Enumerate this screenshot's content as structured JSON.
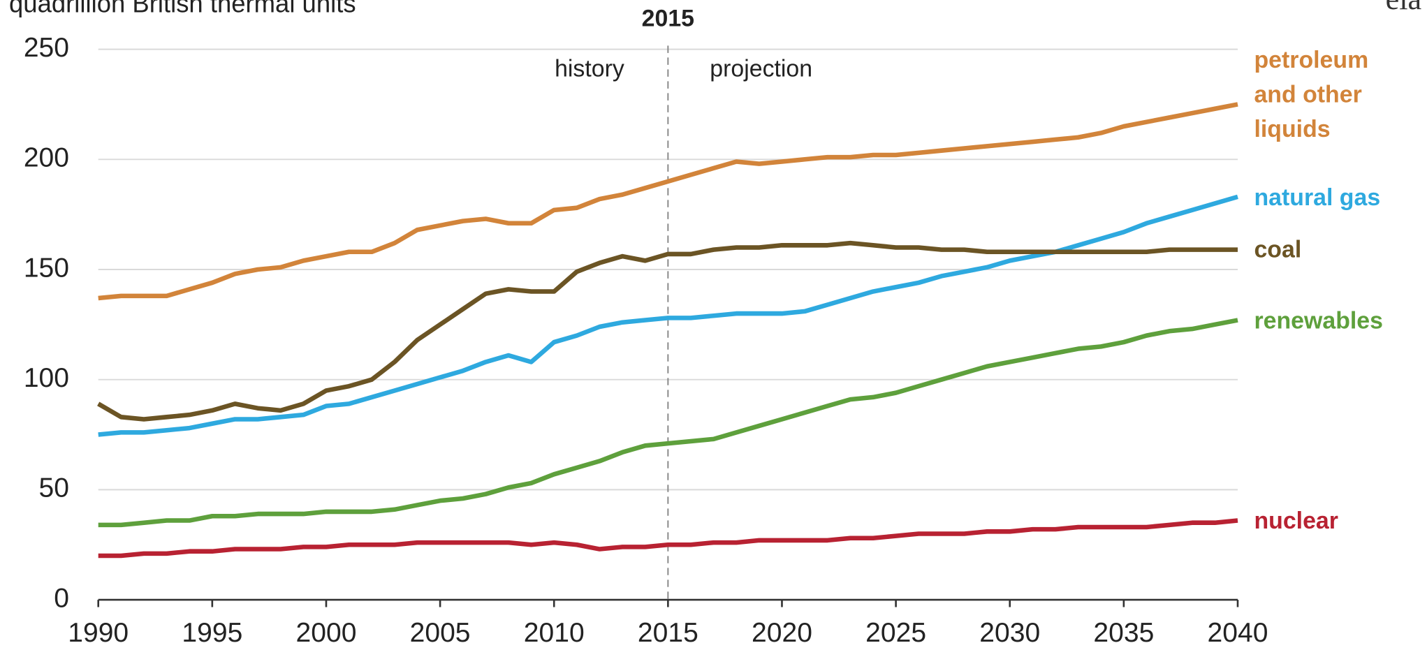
{
  "chart_data": {
    "type": "line",
    "y_axis_label": "quadrillion British thermal units",
    "logo": "eia",
    "divider": 2015,
    "left_note": "history",
    "right_note": "projection",
    "xlim": [
      1990,
      2040
    ],
    "xticks": [
      1990,
      1995,
      2000,
      2005,
      2010,
      2015,
      2020,
      2025,
      2030,
      2035,
      2040
    ],
    "ylim": [
      0,
      250
    ],
    "yticks": [
      0,
      50,
      100,
      150,
      200,
      250
    ],
    "grid": true,
    "x": [
      1990,
      1991,
      1992,
      1993,
      1994,
      1995,
      1996,
      1997,
      1998,
      1999,
      2000,
      2001,
      2002,
      2003,
      2004,
      2005,
      2006,
      2007,
      2008,
      2009,
      2010,
      2011,
      2012,
      2013,
      2014,
      2015,
      2016,
      2017,
      2018,
      2019,
      2020,
      2021,
      2022,
      2023,
      2024,
      2025,
      2026,
      2027,
      2028,
      2029,
      2030,
      2031,
      2032,
      2033,
      2034,
      2035,
      2036,
      2037,
      2038,
      2039,
      2040
    ],
    "series": [
      {
        "name": "petroleum and other liquids",
        "color": "#d2843a",
        "values": [
          137,
          138,
          138,
          138,
          141,
          144,
          148,
          150,
          151,
          154,
          156,
          158,
          158,
          162,
          168,
          170,
          172,
          173,
          171,
          171,
          177,
          178,
          182,
          184,
          187,
          190,
          193,
          196,
          199,
          198,
          199,
          200,
          201,
          201,
          202,
          202,
          203,
          204,
          205,
          206,
          207,
          208,
          209,
          210,
          212,
          215,
          217,
          219,
          221,
          223,
          225
        ]
      },
      {
        "name": "natural gas",
        "color": "#2ea9df",
        "values": [
          75,
          76,
          76,
          77,
          78,
          80,
          82,
          82,
          83,
          84,
          88,
          89,
          92,
          95,
          98,
          101,
          104,
          108,
          111,
          108,
          117,
          120,
          124,
          126,
          127,
          128,
          128,
          129,
          130,
          130,
          130,
          131,
          134,
          137,
          140,
          142,
          144,
          147,
          149,
          151,
          154,
          156,
          158,
          161,
          164,
          167,
          171,
          174,
          177,
          180,
          183
        ]
      },
      {
        "name": "coal",
        "color": "#6b5424",
        "values": [
          89,
          83,
          82,
          83,
          84,
          86,
          89,
          87,
          86,
          89,
          95,
          97,
          100,
          108,
          118,
          125,
          132,
          139,
          141,
          140,
          140,
          149,
          153,
          156,
          154,
          157,
          157,
          159,
          160,
          160,
          161,
          161,
          161,
          162,
          161,
          160,
          160,
          159,
          159,
          158,
          158,
          158,
          158,
          158,
          158,
          158,
          158,
          159,
          159,
          159,
          159
        ]
      },
      {
        "name": "renewables",
        "color": "#5ea03c",
        "values": [
          34,
          34,
          35,
          36,
          36,
          38,
          38,
          39,
          39,
          39,
          40,
          40,
          40,
          41,
          43,
          45,
          46,
          48,
          51,
          53,
          57,
          60,
          63,
          67,
          70,
          71,
          72,
          73,
          76,
          79,
          82,
          85,
          88,
          91,
          92,
          94,
          97,
          100,
          103,
          106,
          108,
          110,
          112,
          114,
          115,
          117,
          120,
          122,
          123,
          125,
          127
        ]
      },
      {
        "name": "nuclear",
        "color": "#b82232",
        "values": [
          20,
          20,
          21,
          21,
          22,
          22,
          23,
          23,
          23,
          24,
          24,
          25,
          25,
          25,
          26,
          26,
          26,
          26,
          26,
          25,
          26,
          25,
          23,
          24,
          24,
          25,
          25,
          26,
          26,
          27,
          27,
          27,
          27,
          28,
          28,
          29,
          30,
          30,
          30,
          31,
          31,
          32,
          32,
          33,
          33,
          33,
          33,
          34,
          35,
          35,
          36
        ]
      }
    ]
  }
}
